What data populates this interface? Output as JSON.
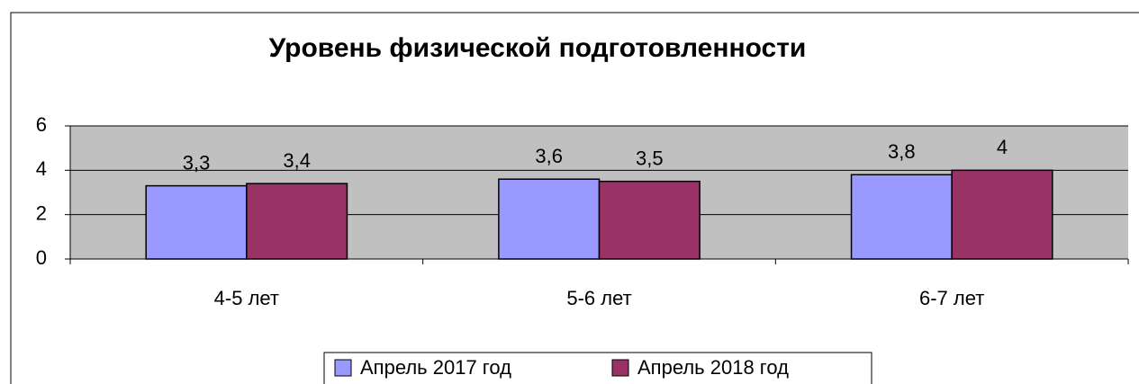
{
  "chart_data": {
    "type": "bar",
    "title": "Уровень физической подготовленности",
    "categories": [
      "4-5 лет",
      "5-6 лет",
      "6-7 лет"
    ],
    "series": [
      {
        "name": "Апрель 2017 год",
        "color": "#9999ff",
        "values": [
          3.3,
          3.6,
          3.8
        ],
        "value_labels": [
          "3,3",
          "3,6",
          "3,8"
        ]
      },
      {
        "name": "Апрель 2018 год",
        "color": "#993366",
        "values": [
          3.4,
          3.5,
          4
        ],
        "value_labels": [
          "3,4",
          "3,5",
          "4"
        ]
      }
    ],
    "ylim": [
      0,
      6
    ],
    "yticks": [
      0,
      2,
      4,
      6
    ],
    "grid": true,
    "legend": "bottom"
  }
}
